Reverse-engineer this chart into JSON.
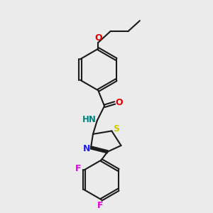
{
  "background_color": "#ebebeb",
  "bond_color": "#1a1a1a",
  "atom_colors": {
    "O": "#e00000",
    "N": "#2020e0",
    "S": "#cccc00",
    "F": "#e000e0",
    "NH": "#008080",
    "C": "#1a1a1a"
  },
  "figsize": [
    3.0,
    3.0
  ],
  "dpi": 100
}
